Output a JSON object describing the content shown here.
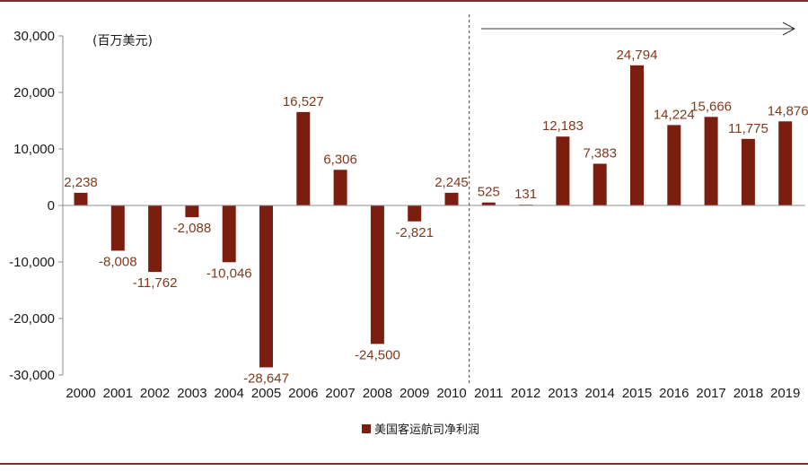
{
  "chart_data": {
    "type": "bar",
    "unit_label": "(百万美元)",
    "categories": [
      "2000",
      "2001",
      "2002",
      "2003",
      "2004",
      "2005",
      "2006",
      "2007",
      "2008",
      "2009",
      "2010",
      "2011",
      "2012",
      "2013",
      "2014",
      "2015",
      "2016",
      "2017",
      "2018",
      "2019"
    ],
    "series": [
      {
        "name": "美国客运航司净利润",
        "values": [
          2238,
          -8008,
          -11762,
          -2088,
          -10046,
          -28647,
          16527,
          6306,
          -24500,
          -2821,
          2245,
          525,
          131,
          12183,
          7383,
          24794,
          14224,
          15666,
          11775,
          14876
        ],
        "labels": [
          "2,238",
          "-8,008",
          "-11,762",
          "-2,088",
          "-10,046",
          "-28,647",
          "16,527",
          "6,306",
          "-24,500",
          "-2,821",
          "2,245",
          "525",
          "131",
          "12,183",
          "7,383",
          "24,794",
          "14,224",
          "15,666",
          "11,775",
          "14,876"
        ]
      }
    ],
    "yticks": [
      30000,
      20000,
      10000,
      0,
      -10000,
      -20000,
      -30000
    ],
    "ytick_labels": [
      "30,000",
      "20,000",
      "10,000",
      "0",
      "-10,000",
      "-20,000",
      "-30,000"
    ],
    "ylim": [
      -30000,
      30000
    ],
    "bar_color": "#7b1e10",
    "label_color": "#7f3a1e",
    "divider": "dashed line between 2010 and 2011 with arrow pointing right",
    "legend_position": "bottom-center",
    "grid": false
  }
}
